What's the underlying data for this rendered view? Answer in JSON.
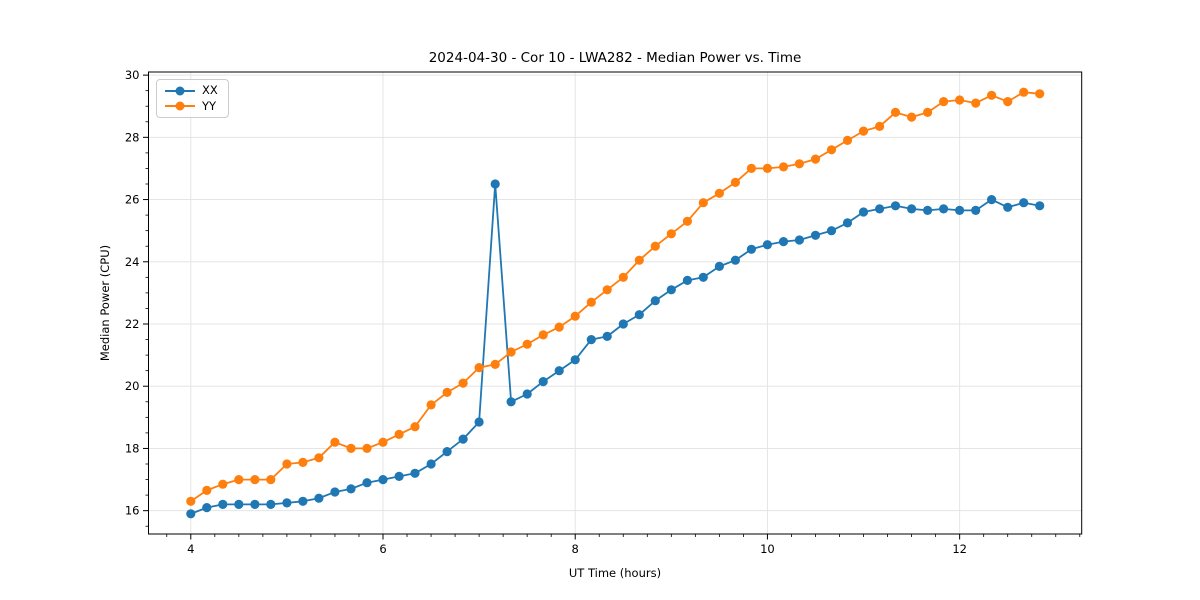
{
  "chart_data": {
    "type": "line",
    "title": "2024-04-30 - Cor 10 - LWA282 - Median Power vs. Time",
    "xlabel": "UT Time (hours)",
    "ylabel": "Median Power (CPU)",
    "xlim": [
      3.56,
      13.27
    ],
    "ylim": [
      15.25,
      30.1
    ],
    "x_ticks": [
      4,
      6,
      8,
      10,
      12
    ],
    "y_ticks": [
      16,
      18,
      20,
      22,
      24,
      26,
      28,
      30
    ],
    "x_minor_step": 0.25,
    "y_minor_step": 0.5,
    "grid": "major",
    "legend_position": "upper-left",
    "background_color": "#ffffff",
    "grid_color": "#e5e5e5",
    "spine_color": "#000000",
    "x": [
      4.0,
      4.167,
      4.333,
      4.5,
      4.667,
      4.833,
      5.0,
      5.167,
      5.333,
      5.5,
      5.667,
      5.833,
      6.0,
      6.167,
      6.333,
      6.5,
      6.667,
      6.833,
      7.0,
      7.167,
      7.333,
      7.5,
      7.667,
      7.833,
      8.0,
      8.167,
      8.333,
      8.5,
      8.667,
      8.833,
      9.0,
      9.167,
      9.333,
      9.5,
      9.667,
      9.833,
      10.0,
      10.167,
      10.333,
      10.5,
      10.667,
      10.833,
      11.0,
      11.167,
      11.333,
      11.5,
      11.667,
      11.833,
      12.0,
      12.167,
      12.333,
      12.5,
      12.667,
      12.833
    ],
    "series": [
      {
        "name": "XX",
        "color": "#1f77b4",
        "values": [
          15.9,
          16.1,
          16.2,
          16.2,
          16.2,
          16.2,
          16.25,
          16.3,
          16.4,
          16.6,
          16.7,
          16.9,
          17.0,
          17.1,
          17.2,
          17.5,
          17.9,
          18.3,
          18.85,
          26.5,
          19.5,
          19.75,
          20.15,
          20.5,
          20.85,
          21.5,
          21.6,
          22.0,
          22.3,
          22.75,
          23.1,
          23.4,
          23.5,
          23.85,
          24.05,
          24.4,
          24.55,
          24.65,
          24.7,
          24.85,
          25.0,
          25.25,
          25.6,
          25.7,
          25.8,
          25.7,
          25.65,
          25.7,
          25.65,
          25.65,
          26.0,
          25.75,
          25.9,
          25.8
        ]
      },
      {
        "name": "YY",
        "color": "#ff7f0e",
        "values": [
          16.3,
          16.65,
          16.85,
          17.0,
          17.0,
          17.0,
          17.5,
          17.55,
          17.7,
          18.2,
          18.0,
          18.0,
          18.2,
          18.45,
          18.7,
          19.4,
          19.8,
          20.1,
          20.6,
          20.7,
          21.1,
          21.35,
          21.65,
          21.9,
          22.25,
          22.7,
          23.1,
          23.5,
          24.05,
          24.5,
          24.9,
          25.3,
          25.9,
          26.2,
          26.55,
          27.0,
          27.0,
          27.05,
          27.15,
          27.3,
          27.6,
          27.9,
          28.2,
          28.35,
          28.8,
          28.65,
          28.8,
          29.15,
          29.2,
          29.1,
          29.35,
          29.15,
          29.45,
          29.4
        ]
      }
    ]
  }
}
